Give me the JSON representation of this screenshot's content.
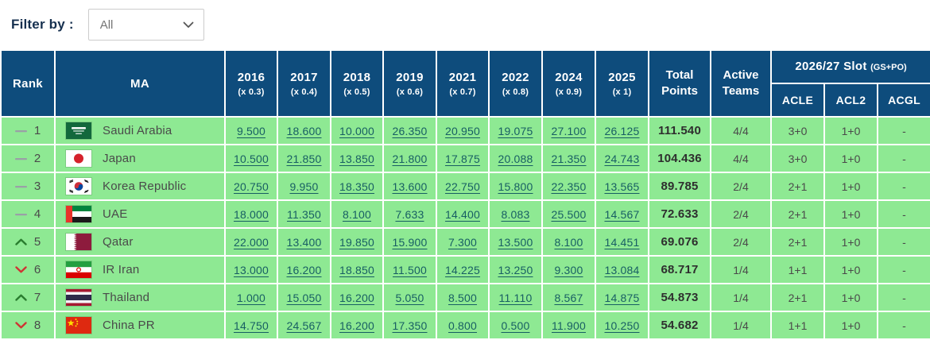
{
  "filter": {
    "label": "Filter by :",
    "value": "All"
  },
  "table": {
    "columns": {
      "rank": "Rank",
      "ma": "MA",
      "years": [
        {
          "year": "2016",
          "multiplier": "(x 0.3)"
        },
        {
          "year": "2017",
          "multiplier": "(x 0.4)"
        },
        {
          "year": "2018",
          "multiplier": "(x 0.5)"
        },
        {
          "year": "2019",
          "multiplier": "(x 0.6)"
        },
        {
          "year": "2021",
          "multiplier": "(x 0.7)"
        },
        {
          "year": "2022",
          "multiplier": "(x 0.8)"
        },
        {
          "year": "2024",
          "multiplier": "(x 0.9)"
        },
        {
          "year": "2025",
          "multiplier": "(x 1)"
        }
      ],
      "total_points": "Total Points",
      "active_teams": "Active Teams",
      "slot_group": "2026/27 Slot",
      "slot_group_suffix": "(GS+PO)",
      "slot_cols": [
        "ACLE",
        "ACL2",
        "ACGL"
      ]
    },
    "rows": [
      {
        "movement": "same",
        "rank": "1",
        "flag": "saudi-arabia",
        "country": "Saudi Arabia",
        "scores": [
          "9.500",
          "18.600",
          "10.000",
          "26.350",
          "20.950",
          "19.075",
          "27.100",
          "26.125"
        ],
        "total": "111.540",
        "active": "4/4",
        "acle": "3+0",
        "acl2": "1+0",
        "acgl": "-"
      },
      {
        "movement": "same",
        "rank": "2",
        "flag": "japan",
        "country": "Japan",
        "scores": [
          "10.500",
          "21.850",
          "13.850",
          "21.800",
          "17.875",
          "20.088",
          "21.350",
          "24.743"
        ],
        "total": "104.436",
        "active": "4/4",
        "acle": "3+0",
        "acl2": "1+0",
        "acgl": "-"
      },
      {
        "movement": "same",
        "rank": "3",
        "flag": "korea-republic",
        "country": "Korea Republic",
        "scores": [
          "20.750",
          "9.950",
          "18.350",
          "13.600",
          "22.750",
          "15.800",
          "22.350",
          "13.565"
        ],
        "total": "89.785",
        "active": "2/4",
        "acle": "2+1",
        "acl2": "1+0",
        "acgl": "-"
      },
      {
        "movement": "same",
        "rank": "4",
        "flag": "uae",
        "country": "UAE",
        "scores": [
          "18.000",
          "11.350",
          "8.100",
          "7.633",
          "14.400",
          "8.083",
          "25.500",
          "14.567"
        ],
        "total": "72.633",
        "active": "2/4",
        "acle": "2+1",
        "acl2": "1+0",
        "acgl": "-"
      },
      {
        "movement": "up",
        "rank": "5",
        "flag": "qatar",
        "country": "Qatar",
        "scores": [
          "22.000",
          "13.400",
          "19.850",
          "15.900",
          "7.300",
          "13.500",
          "8.100",
          "14.451"
        ],
        "total": "69.076",
        "active": "2/4",
        "acle": "2+1",
        "acl2": "1+0",
        "acgl": "-"
      },
      {
        "movement": "down",
        "rank": "6",
        "flag": "ir-iran",
        "country": "IR Iran",
        "scores": [
          "13.000",
          "16.200",
          "18.850",
          "11.500",
          "14.225",
          "13.250",
          "9.300",
          "13.084"
        ],
        "total": "68.717",
        "active": "1/4",
        "acle": "1+1",
        "acl2": "1+0",
        "acgl": "-"
      },
      {
        "movement": "up",
        "rank": "7",
        "flag": "thailand",
        "country": "Thailand",
        "scores": [
          "1.000",
          "15.050",
          "16.200",
          "5.050",
          "8.500",
          "11.110",
          "8.567",
          "14.875"
        ],
        "total": "54.873",
        "active": "1/4",
        "acle": "2+1",
        "acl2": "1+0",
        "acgl": "-"
      },
      {
        "movement": "down",
        "rank": "8",
        "flag": "china-pr",
        "country": "China PR",
        "scores": [
          "14.750",
          "24.567",
          "16.200",
          "17.350",
          "0.800",
          "0.500",
          "11.900",
          "10.250"
        ],
        "total": "54.682",
        "active": "1/4",
        "acle": "1+1",
        "acl2": "1+0",
        "acgl": "-"
      }
    ]
  },
  "colors": {
    "header_bg": "#0e4c7c",
    "row_bg": "#8ee993",
    "score_link": "#175e63",
    "rank_up": "#2a7d2f",
    "rank_down": "#cf3434",
    "filter_label": "#16304f"
  }
}
